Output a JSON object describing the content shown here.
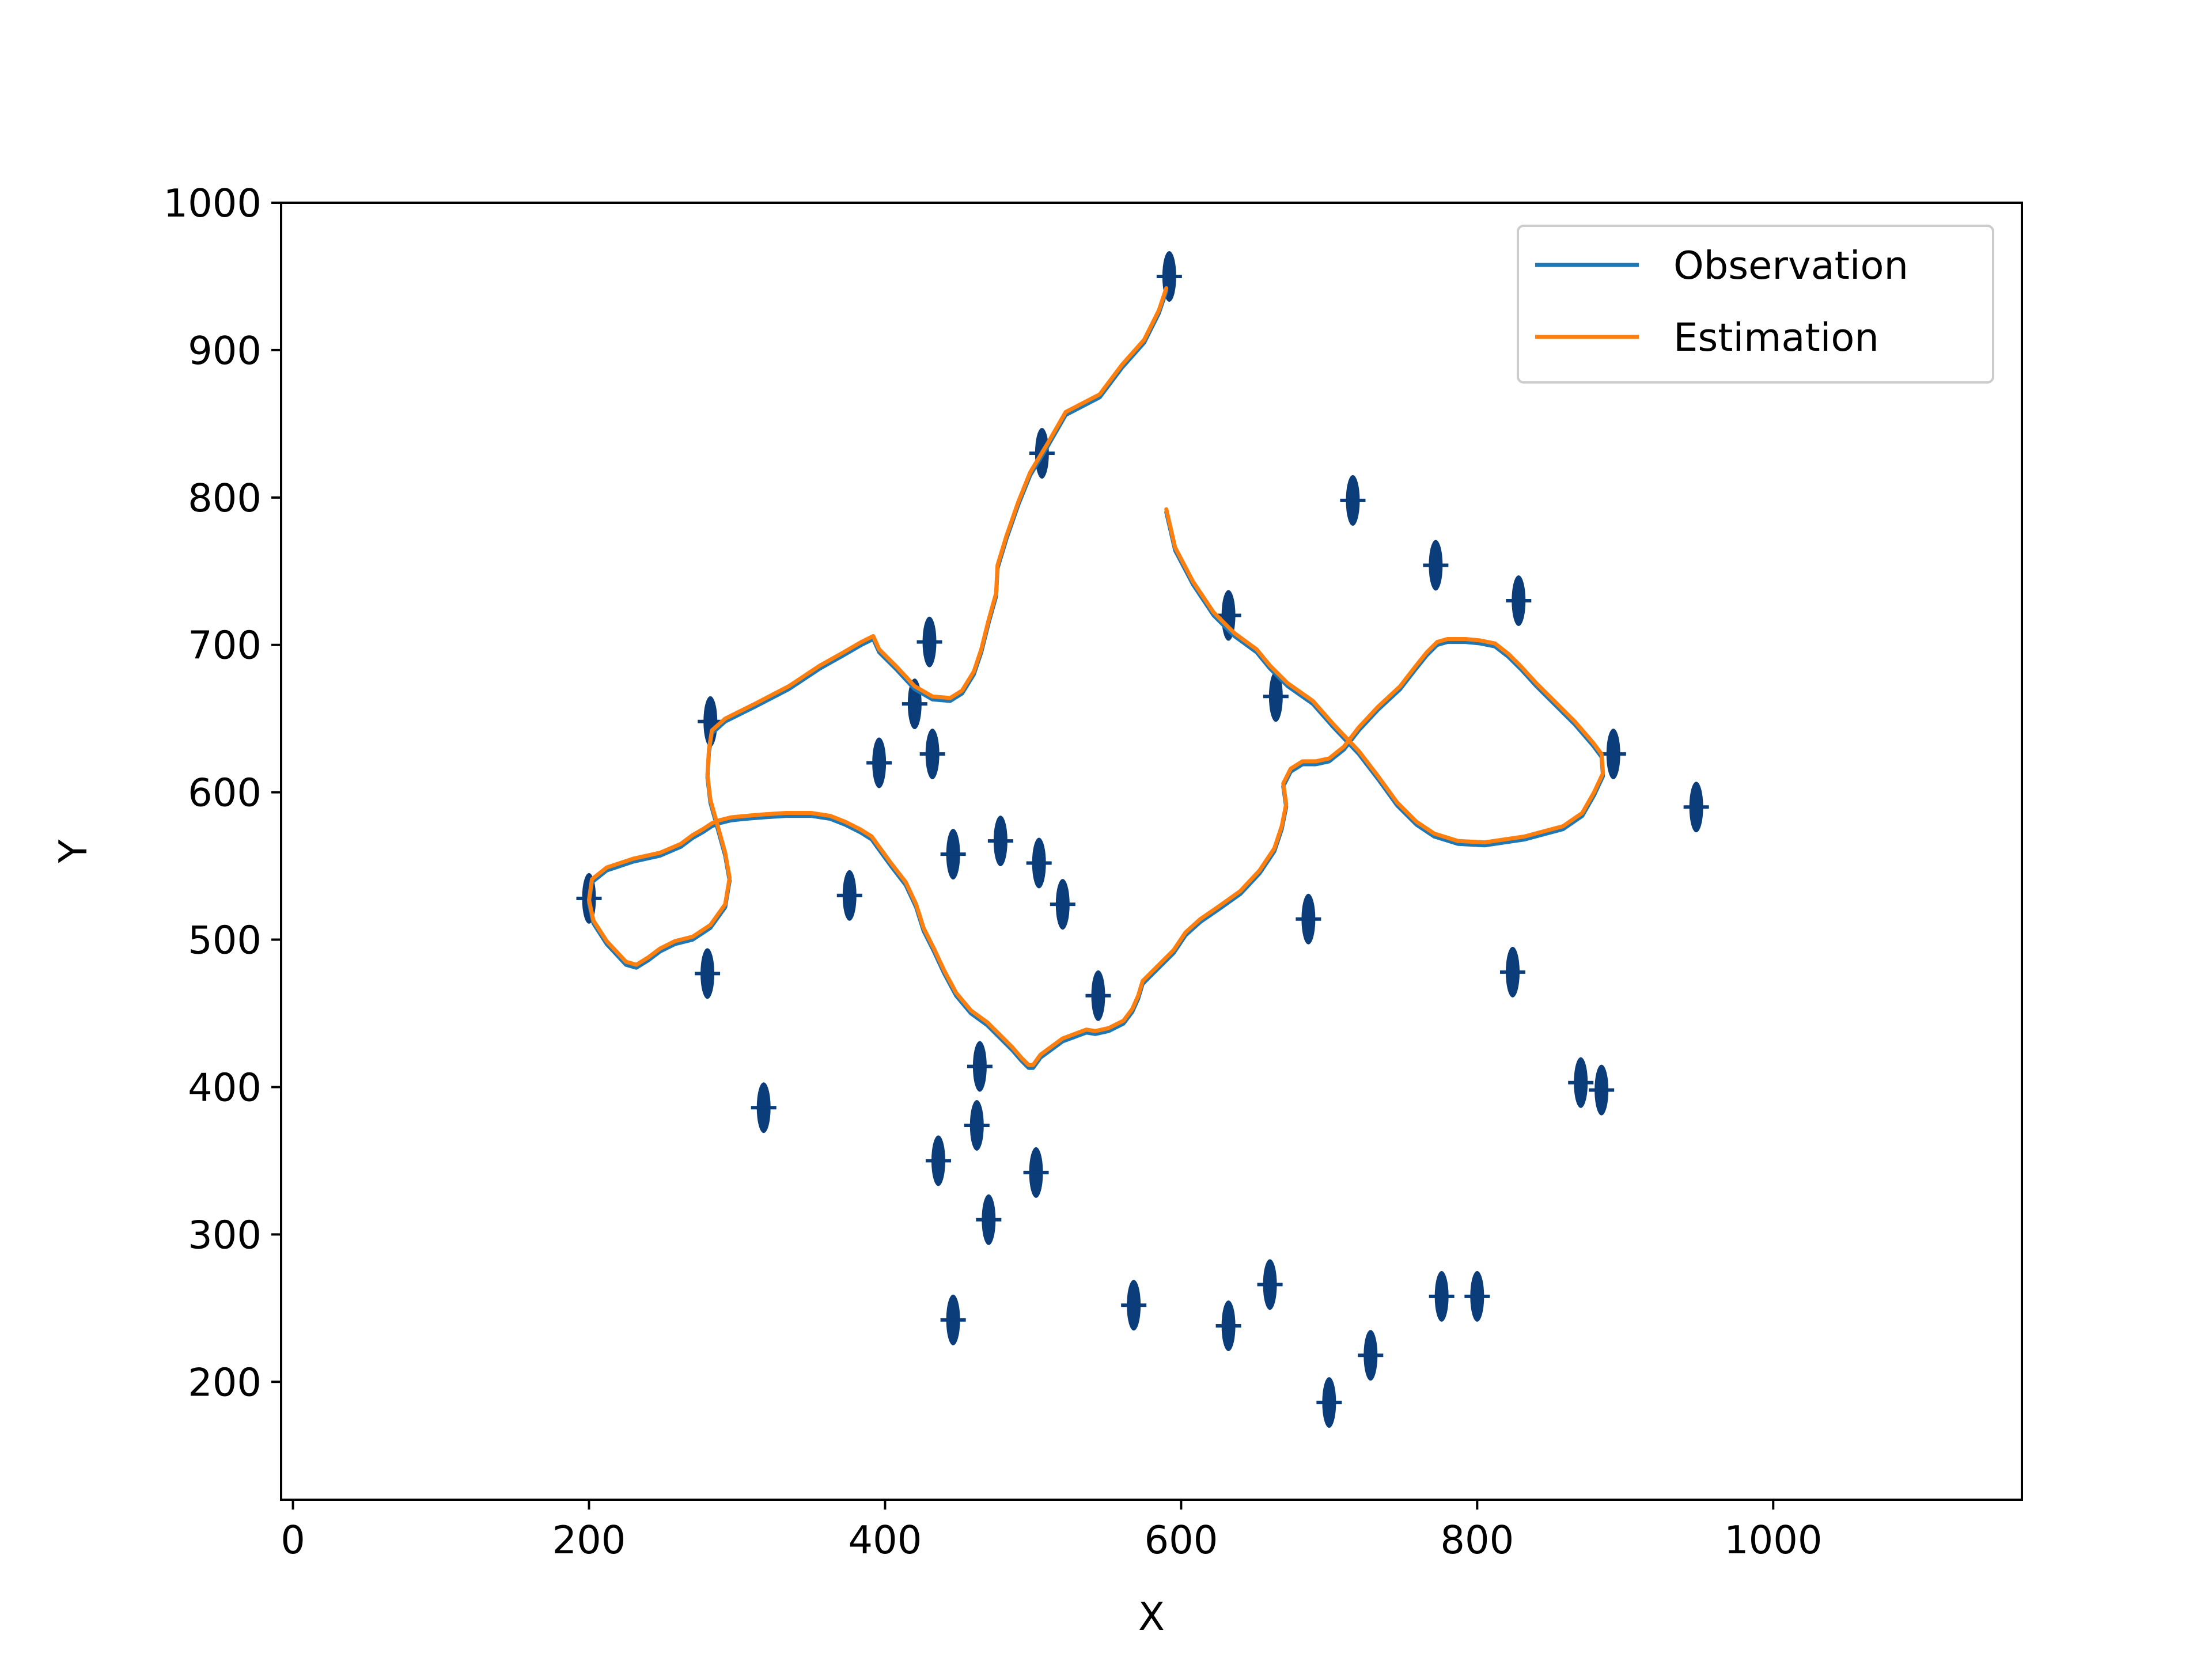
{
  "chart_data": {
    "type": "line",
    "title": "",
    "xlabel": "X",
    "ylabel": "Y",
    "xlim": [
      -8,
      1168
    ],
    "ylim": [
      120,
      1000
    ],
    "xticks": [
      0,
      200,
      400,
      600,
      800,
      1000
    ],
    "yticks": [
      200,
      300,
      400,
      500,
      600,
      700,
      800,
      900,
      1000
    ],
    "grid": false,
    "legend_position": "top-right",
    "colors": {
      "observation": "#1f77b4",
      "estimation": "#ff7f0e",
      "landmark": "#0b3d7a"
    },
    "series": [
      {
        "name": "Observation",
        "x": [
          590,
          585,
          575,
          560,
          545,
          522,
          510,
          498,
          490,
          482,
          476,
          475,
          470,
          465,
          460,
          452,
          444,
          432,
          420,
          408,
          396,
          392,
          384,
          372,
          356,
          335,
          312,
          292,
          283,
          281,
          280,
          282,
          287,
          292,
          295,
          292,
          282,
          270,
          258,
          248,
          240,
          232,
          225,
          212,
          203,
          200,
          202,
          212,
          230,
          248,
          262,
          270,
          277,
          283,
          288,
          296,
          306,
          318,
          333,
          350,
          363,
          373,
          383,
          391,
          396,
          404,
          414,
          421,
          426,
          433,
          440,
          448,
          458,
          469,
          478,
          486,
          492,
          497,
          500,
          505,
          520,
          536,
          542,
          551,
          561,
          567,
          571,
          574,
          583,
          595,
          603,
          613,
          626,
          640,
          653,
          663,
          668,
          671,
          669,
          674,
          682,
          691,
          700,
          710,
          720,
          733,
          748,
          758,
          766,
          773,
          780,
          792,
          802,
          812,
          821,
          830,
          840,
          852,
          866,
          878,
          884,
          885,
          879,
          871,
          858,
          832,
          805,
          787,
          771,
          759,
          746,
          733,
          720,
          703,
          689,
          672,
          660,
          651,
          636,
          622,
          608,
          596,
          590
        ],
        "y": [
          940,
          925,
          905,
          888,
          868,
          856,
          835,
          815,
          795,
          772,
          752,
          733,
          715,
          695,
          680,
          667,
          662,
          663,
          670,
          683,
          695,
          704,
          700,
          693,
          684,
          670,
          658,
          648,
          640,
          627,
          610,
          593,
          575,
          557,
          540,
          522,
          508,
          500,
          497,
          492,
          486,
          481,
          483,
          497,
          511,
          525,
          539,
          547,
          553,
          557,
          563,
          569,
          573,
          577,
          579,
          581,
          582,
          583,
          584,
          584,
          582,
          578,
          573,
          568,
          561,
          550,
          537,
          522,
          506,
          492,
          477,
          462,
          450,
          442,
          433,
          425,
          418,
          413,
          413,
          420,
          431,
          437,
          436,
          438,
          443,
          451,
          460,
          470,
          479,
          491,
          503,
          512,
          521,
          531,
          545,
          560,
          575,
          590,
          604,
          614,
          619,
          619,
          621,
          629,
          642,
          656,
          670,
          683,
          693,
          700,
          702,
          702,
          701,
          699,
          692,
          683,
          672,
          660,
          646,
          632,
          624,
          611,
          598,
          584,
          575,
          568,
          564,
          565,
          570,
          578,
          591,
          609,
          626,
          644,
          660,
          672,
          684,
          695,
          706,
          720,
          741,
          764,
          790
        ]
      },
      {
        "name": "Estimation",
        "x": [
          590,
          585,
          575,
          560,
          545,
          522,
          510,
          498,
          490,
          482,
          476,
          475,
          470,
          465,
          460,
          452,
          444,
          432,
          420,
          408,
          396,
          392,
          384,
          372,
          356,
          335,
          312,
          292,
          283,
          281,
          280,
          282,
          287,
          292,
          295,
          292,
          282,
          270,
          258,
          248,
          240,
          232,
          225,
          212,
          203,
          200,
          202,
          212,
          230,
          248,
          262,
          270,
          277,
          283,
          288,
          296,
          306,
          318,
          333,
          350,
          363,
          373,
          383,
          391,
          396,
          404,
          414,
          421,
          426,
          433,
          440,
          448,
          458,
          469,
          478,
          486,
          492,
          497,
          500,
          505,
          520,
          536,
          542,
          551,
          561,
          567,
          571,
          574,
          583,
          595,
          603,
          613,
          626,
          640,
          653,
          663,
          668,
          671,
          669,
          674,
          682,
          691,
          700,
          710,
          720,
          733,
          748,
          758,
          766,
          773,
          780,
          792,
          802,
          812,
          821,
          830,
          840,
          852,
          866,
          878,
          884,
          885,
          879,
          871,
          858,
          832,
          805,
          787,
          771,
          759,
          746,
          733,
          720,
          703,
          689,
          672,
          660,
          651,
          636,
          622,
          608,
          596,
          590
        ],
        "y": [
          942,
          927,
          907,
          890,
          870,
          858,
          837,
          817,
          797,
          774,
          754,
          735,
          717,
          697,
          682,
          669,
          664,
          665,
          672,
          685,
          697,
          706,
          702,
          695,
          686,
          672,
          660,
          650,
          642,
          629,
          612,
          595,
          577,
          559,
          542,
          524,
          510,
          502,
          499,
          494,
          488,
          483,
          485,
          499,
          513,
          527,
          541,
          549,
          555,
          559,
          565,
          571,
          575,
          579,
          581,
          583,
          584,
          585,
          586,
          586,
          584,
          580,
          575,
          570,
          563,
          552,
          539,
          524,
          508,
          494,
          479,
          464,
          452,
          444,
          435,
          427,
          420,
          415,
          415,
          422,
          433,
          439,
          438,
          440,
          445,
          453,
          462,
          472,
          481,
          493,
          505,
          514,
          523,
          533,
          547,
          562,
          577,
          592,
          606,
          616,
          621,
          621,
          623,
          631,
          644,
          658,
          672,
          685,
          695,
          702,
          704,
          704,
          703,
          701,
          694,
          685,
          674,
          662,
          648,
          634,
          626,
          613,
          600,
          586,
          577,
          570,
          566,
          567,
          572,
          580,
          593,
          611,
          628,
          646,
          662,
          674,
          686,
          697,
          708,
          722,
          743,
          766,
          792
        ]
      }
    ],
    "landmarks": [
      {
        "x": 592,
        "y": 950
      },
      {
        "x": 506,
        "y": 830
      },
      {
        "x": 716,
        "y": 798
      },
      {
        "x": 772,
        "y": 754
      },
      {
        "x": 828,
        "y": 730
      },
      {
        "x": 632,
        "y": 720
      },
      {
        "x": 430,
        "y": 702
      },
      {
        "x": 282,
        "y": 648
      },
      {
        "x": 664,
        "y": 665
      },
      {
        "x": 420,
        "y": 660
      },
      {
        "x": 432,
        "y": 626
      },
      {
        "x": 396,
        "y": 620
      },
      {
        "x": 892,
        "y": 626
      },
      {
        "x": 948,
        "y": 590
      },
      {
        "x": 446,
        "y": 558
      },
      {
        "x": 478,
        "y": 567
      },
      {
        "x": 504,
        "y": 552
      },
      {
        "x": 520,
        "y": 524
      },
      {
        "x": 200,
        "y": 528
      },
      {
        "x": 376,
        "y": 530
      },
      {
        "x": 686,
        "y": 514
      },
      {
        "x": 824,
        "y": 478
      },
      {
        "x": 280,
        "y": 477
      },
      {
        "x": 544,
        "y": 462
      },
      {
        "x": 464,
        "y": 414
      },
      {
        "x": 462,
        "y": 374
      },
      {
        "x": 870,
        "y": 403
      },
      {
        "x": 884,
        "y": 398
      },
      {
        "x": 318,
        "y": 386
      },
      {
        "x": 436,
        "y": 350
      },
      {
        "x": 502,
        "y": 342
      },
      {
        "x": 470,
        "y": 310
      },
      {
        "x": 660,
        "y": 266
      },
      {
        "x": 568,
        "y": 252
      },
      {
        "x": 446,
        "y": 242
      },
      {
        "x": 776,
        "y": 258
      },
      {
        "x": 800,
        "y": 258
      },
      {
        "x": 632,
        "y": 238
      },
      {
        "x": 728,
        "y": 218
      },
      {
        "x": 700,
        "y": 186
      }
    ],
    "legend": {
      "entries": [
        "Observation",
        "Estimation"
      ]
    }
  }
}
